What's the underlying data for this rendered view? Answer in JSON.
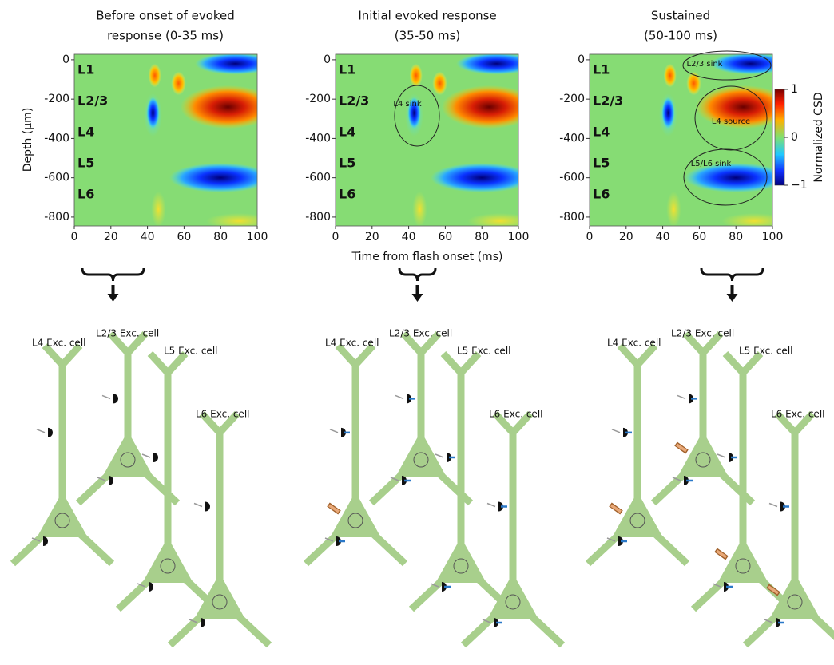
{
  "panels": [
    {
      "title": [
        "Before onset of evoked",
        "response (0-35 ms)"
      ],
      "xlim": [
        0,
        100
      ],
      "ylim": [
        28,
        -845
      ],
      "xticks": [
        0,
        20,
        40,
        60,
        80,
        100
      ],
      "yticks": [
        0,
        -200,
        -400,
        -600,
        -800
      ],
      "layers": [
        "L1",
        "L2/3",
        "L4",
        "L5",
        "L6"
      ],
      "annotations": [],
      "cells": [
        "L4 Exc. cell",
        "L2/3 Exc. cell",
        "L5 Exc. cell",
        "L6 Exc. cell"
      ]
    },
    {
      "title": [
        "Initial evoked response",
        "(35-50 ms)"
      ],
      "xlim": [
        0,
        100
      ],
      "ylim": [
        28,
        -845
      ],
      "xticks": [
        0,
        20,
        40,
        60,
        80,
        100
      ],
      "yticks": [
        0,
        -200,
        -400,
        -600,
        -800
      ],
      "layers": [
        "L1",
        "L2/3",
        "L4",
        "L5",
        "L6"
      ],
      "annotations": [
        "L4 sink"
      ],
      "cells": [
        "L4 Exc. cell",
        "L2/3 Exc. cell",
        "L5 Exc. cell",
        "L6 Exc. cell"
      ]
    },
    {
      "title": [
        "Sustained",
        "(50-100 ms)"
      ],
      "xlim": [
        0,
        100
      ],
      "ylim": [
        28,
        -845
      ],
      "xticks": [
        0,
        20,
        40,
        60,
        80,
        100
      ],
      "yticks": [
        0,
        -200,
        -400,
        -600,
        -800
      ],
      "layers": [
        "L1",
        "L2/3",
        "L4",
        "L5",
        "L6"
      ],
      "annotations": [
        "L2/3 sink",
        "L4 source",
        "L5/L6 sink"
      ],
      "cells": [
        "L4 Exc. cell",
        "L2/3 Exc. cell",
        "L5 Exc. cell",
        "L6 Exc. cell"
      ]
    }
  ],
  "y_label": "Depth (μm)",
  "x_label": "Time from flash onset (ms)",
  "colorbar": {
    "label": "Normalized CSD",
    "lim": [
      1,
      -1
    ],
    "ticks": [
      1,
      0,
      {
        "value": -1,
        "label": "−1"
      }
    ]
  }
}
